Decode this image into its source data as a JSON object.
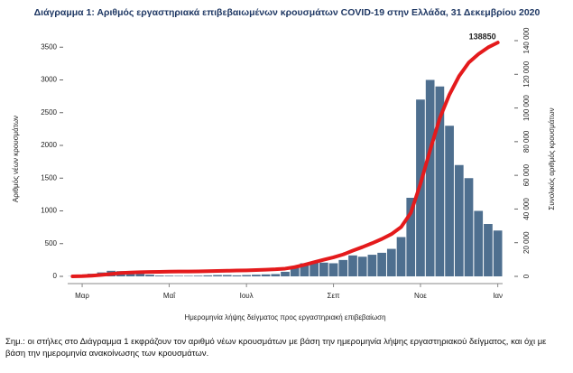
{
  "chart_data": {
    "type": "bar-line",
    "title": "Διάγραμμα 1: Αριθμός εργαστηριακά επιβεβαιωμένων κρουσμάτων COVID-19 στην Ελλάδα, 31 Δεκεμβρίου 2020",
    "y_label": "Αριθμός νέων κρουσμάτων",
    "y2_label": "Συνολικός αριθμός κρουσμάτων",
    "x_label": "Ημερομηνία λήψης δείγματος προς εργαστηριακή επιβεβαίωση",
    "note": "Σημ.: οι στήλες στο Διάγραμμα 1 εκφράζουν τον αριθμό νέων κρουσμάτων με βάση την ημερομηνία λήψης εργαστηριακού δείγματος, και όχι με βάση την ημερομηνία ανακοίνωσης των κρουσμάτων.",
    "categories": [
      null,
      "Μαρ",
      null,
      null,
      null,
      null,
      null,
      null,
      null,
      null,
      "Μαΐ",
      null,
      null,
      null,
      null,
      null,
      null,
      null,
      "Ιουλ",
      null,
      null,
      null,
      null,
      null,
      null,
      null,
      null,
      "Σεπ",
      null,
      null,
      null,
      null,
      null,
      null,
      null,
      null,
      "Νοε",
      null,
      null,
      null,
      null,
      null,
      null,
      null,
      "Ιαν"
    ],
    "series": [
      {
        "type": "bar",
        "color": "#4e6f8f",
        "values": [
          3,
          15,
          40,
          60,
          85,
          80,
          50,
          40,
          25,
          12,
          10,
          8,
          8,
          10,
          15,
          20,
          20,
          15,
          20,
          25,
          30,
          35,
          70,
          130,
          200,
          220,
          210,
          200,
          250,
          320,
          300,
          330,
          360,
          420,
          600,
          1200,
          2700,
          3000,
          2900,
          2300,
          1700,
          1500,
          1000,
          800,
          700
        ]
      },
      {
        "type": "line",
        "color": "#e41a1c",
        "axis": "y2",
        "values": [
          7,
          120,
          400,
          850,
          1400,
          2000,
          2300,
          2500,
          2600,
          2700,
          2800,
          2860,
          2910,
          2980,
          3080,
          3200,
          3340,
          3460,
          3560,
          3730,
          3950,
          4200,
          4580,
          5500,
          6900,
          8400,
          9900,
          11300,
          13000,
          15300,
          17400,
          19700,
          22200,
          25100,
          29300,
          37700,
          55000,
          75000,
          94000,
          108000,
          119000,
          127000,
          132000,
          136000,
          138850
        ]
      }
    ],
    "ylim": [
      0,
      3600
    ],
    "yticks": [
      0,
      500,
      1000,
      1500,
      2000,
      2500,
      3000,
      3500
    ],
    "y2lim": [
      0,
      140000
    ],
    "y2ticks": [
      0,
      {
        "value": 20000,
        "label": "20 000"
      },
      {
        "value": 40000,
        "label": "40 000"
      },
      {
        "value": 60000,
        "label": "60 000"
      },
      {
        "value": 80000,
        "label": "80 000"
      },
      {
        "value": 100000,
        "label": "100 000"
      },
      {
        "value": 120000,
        "label": "120 000"
      },
      {
        "value": 140000,
        "label": "140 000"
      }
    ]
  }
}
